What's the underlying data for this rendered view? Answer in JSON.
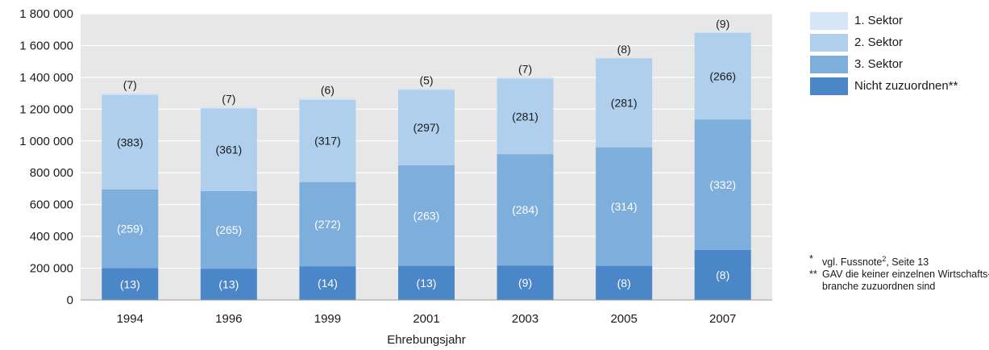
{
  "chart_data": {
    "type": "bar",
    "stacked": true,
    "categories": [
      "1994",
      "1996",
      "1999",
      "2001",
      "2003",
      "2005",
      "2007"
    ],
    "series": [
      {
        "name": "Nicht zuzuordnen**",
        "color": "#4a86c8",
        "values": [
          200000,
          197000,
          212000,
          215000,
          217000,
          215000,
          315000
        ],
        "labels": [
          "(13)",
          "(13)",
          "(14)",
          "(13)",
          "(9)",
          "(8)",
          "(8)"
        ]
      },
      {
        "name": "3. Sektor",
        "color": "#7eaedb",
        "values": [
          495000,
          488000,
          530000,
          632000,
          700000,
          745000,
          820000
        ],
        "labels": [
          "(259)",
          "(265)",
          "(272)",
          "(263)",
          "(284)",
          "(314)",
          "(332)"
        ]
      },
      {
        "name": "2. Sektor",
        "color": "#b0cfec",
        "values": [
          595000,
          520000,
          517000,
          475000,
          475000,
          560000,
          545000
        ],
        "labels": [
          "(383)",
          "(361)",
          "(317)",
          "(297)",
          "(281)",
          "(281)",
          "(266)"
        ]
      },
      {
        "name": "1. Sektor",
        "color": "#d6e6f6",
        "values": [
          12000,
          10000,
          10000,
          10000,
          11000,
          5000,
          7000
        ],
        "labels": [
          "(7)",
          "(7)",
          "(6)",
          "(5)",
          "(7)",
          "(8)",
          "(9)"
        ]
      }
    ],
    "title": "",
    "xlabel": "Ehrebungsjahr",
    "ylabel": "",
    "ylim": [
      0,
      1800000
    ],
    "yticks": [
      0,
      200000,
      400000,
      600000,
      800000,
      1000000,
      1200000,
      1400000,
      1600000,
      1800000
    ],
    "ytick_labels": [
      "0",
      "200 000",
      "400 000",
      "600 000",
      "800 000",
      "1 000 000",
      "1 200 000",
      "1 400 000",
      "1 600 000",
      "1 800 000"
    ],
    "grid": true,
    "legend_position": "right"
  },
  "legend": [
    {
      "label": "1. Sektor",
      "color": "#d6e6f6"
    },
    {
      "label": "2. Sektor",
      "color": "#b0cfec"
    },
    {
      "label": "3. Sektor",
      "color": "#7eaedb"
    },
    {
      "label": "Nicht zuzuordnen**",
      "color": "#4a86c8"
    }
  ],
  "notes": {
    "note1_mark": "*",
    "note1_text": "vgl. Fussnote",
    "note1_sup": "2",
    "note1_suffix": ", Seite 13",
    "note2_mark": "**",
    "note2_line1": "GAV die keiner einzelnen Wirtschafts-",
    "note2_line2": "branche zuzuordnen sind"
  },
  "colors": {
    "plot_background": "#e7e7e7",
    "gridline": "#ffffff",
    "label_dark": "#1a1a1a",
    "label_light": "#ffffff"
  }
}
